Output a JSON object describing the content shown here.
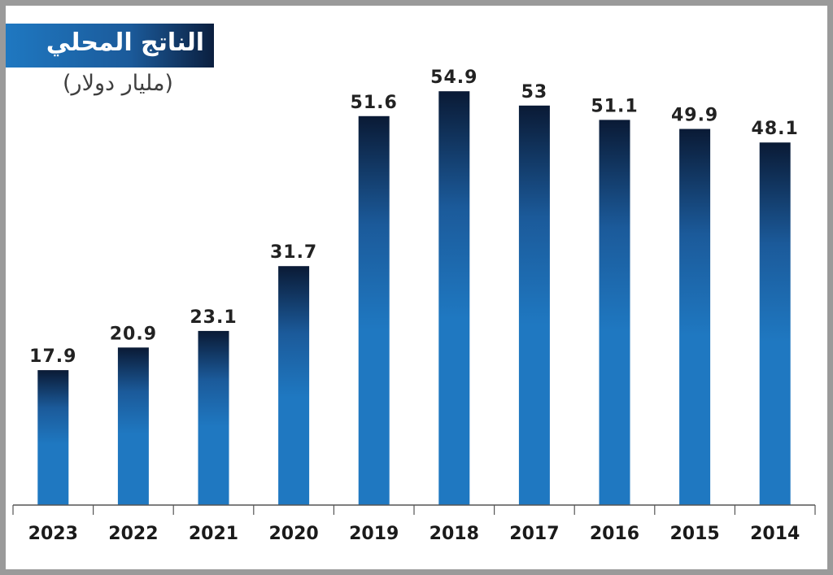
{
  "header": {
    "title": "الناتج المحلي",
    "subtitle": "(مليار دولار)"
  },
  "colors": {
    "bar_top": "#0a1a35",
    "bar_bottom": "#1f78c1",
    "axis": "#555555"
  },
  "chart_data": {
    "type": "bar",
    "title": "الناتج المحلي",
    "ylabel": "(مليار دولار)",
    "xlabel": "",
    "categories": [
      "2023",
      "2022",
      "2021",
      "2020",
      "2019",
      "2018",
      "2017",
      "2016",
      "2015",
      "2014"
    ],
    "values": [
      17.9,
      20.9,
      23.1,
      31.7,
      51.6,
      54.9,
      53,
      51.1,
      49.9,
      48.1
    ],
    "value_labels": [
      "17.9",
      "20.9",
      "23.1",
      "31.7",
      "51.6",
      "54.9",
      "53",
      "51.1",
      "49.9",
      "48.1"
    ],
    "ylim": [
      0,
      56
    ],
    "grid": false,
    "legend": "none"
  }
}
